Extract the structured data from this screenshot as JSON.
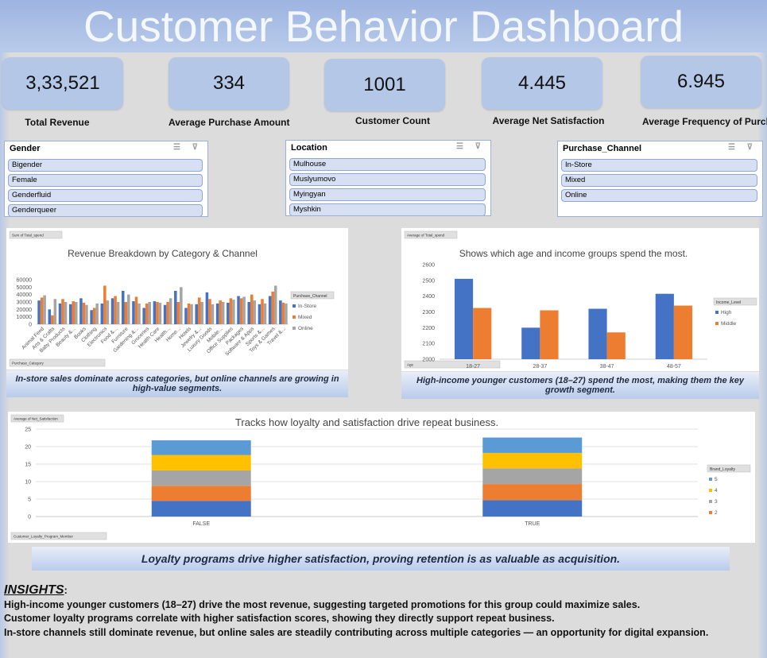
{
  "header": {
    "title": "Customer Behavior Dashboard"
  },
  "kpis": [
    {
      "value": "3,33,521",
      "label": "Total Revenue"
    },
    {
      "value": "334",
      "label": "Average Purchase Amount"
    },
    {
      "value": "1001",
      "label": "Customer Count"
    },
    {
      "value": "4.445",
      "label": "Average Net Satisfaction"
    },
    {
      "value": "6.945",
      "label": "Average Frequency of  Purchase"
    }
  ],
  "slicers": [
    {
      "title": "Gender",
      "items": [
        "Bigender",
        "Female",
        "Genderfluid",
        "Genderqueer"
      ]
    },
    {
      "title": "Location",
      "items": [
        "Mulhouse",
        "Muslyumovo",
        "Myingyan",
        "Myshkin"
      ]
    },
    {
      "title": "Purchase_Channel",
      "items": [
        "In-Store",
        "Mixed",
        "Online"
      ]
    }
  ],
  "chart_data": [
    {
      "type": "bar",
      "title": "Revenue Breakdown by Category & Channel",
      "field_buttons": [
        "Sum of Total_spend",
        "Purchase_Category"
      ],
      "legend_title": "Purchase_Channel",
      "categories": [
        "Animal Feed",
        "Arts & Crafts",
        "Baby Products",
        "Beauty &...",
        "Books",
        "Clothing",
        "Electronics",
        "Food &...",
        "Furniture",
        "Gardening &...",
        "Groceries",
        "Health Care",
        "Health...",
        "Home...",
        "Hotels",
        "Jewelry &...",
        "Luxury Goods",
        "Mobile...",
        "Office Supplies",
        "Packages",
        "Software & Apps",
        "Sports &...",
        "Toys & Games",
        "Travel &..."
      ],
      "series": [
        {
          "name": "In-Store",
          "color": "#4472c4",
          "values": [
            32000,
            20000,
            28000,
            27000,
            35000,
            19000,
            28000,
            35000,
            45000,
            31000,
            22000,
            31000,
            26000,
            45000,
            22000,
            27000,
            43000,
            28000,
            29000,
            38000,
            30000,
            27000,
            38000,
            32000
          ]
        },
        {
          "name": "Mixed",
          "color": "#ed7d31",
          "values": [
            36000,
            12000,
            34000,
            31000,
            29000,
            22000,
            52000,
            38000,
            30000,
            37000,
            28000,
            30000,
            30000,
            30000,
            28000,
            36000,
            34000,
            32000,
            35000,
            35000,
            40000,
            34000,
            44000,
            29000
          ]
        },
        {
          "name": "Online",
          "color": "#a5a5a5",
          "values": [
            39000,
            34000,
            30000,
            30000,
            26000,
            28000,
            32000,
            30000,
            40000,
            28000,
            30000,
            29000,
            35000,
            50000,
            27000,
            30000,
            27000,
            30000,
            33000,
            37000,
            32000,
            28000,
            52000,
            28000
          ]
        }
      ],
      "ylim": [
        0,
        60000
      ],
      "yticks": [
        0,
        10000,
        20000,
        30000,
        40000,
        50000,
        60000
      ],
      "grid": false,
      "legend": "right",
      "caption": "In-store sales dominate across categories, but online channels are growing in high-value segments."
    },
    {
      "type": "bar",
      "title": "Shows which age and income groups spend the most.",
      "field_buttons": [
        "Average of Total_spend",
        "Age"
      ],
      "legend_title": "Income_Level",
      "categories": [
        "18-27",
        "28-37",
        "38-47",
        "48-57"
      ],
      "series": [
        {
          "name": "High",
          "color": "#4472c4",
          "values": [
            2510,
            2200,
            2320,
            2415
          ]
        },
        {
          "name": "Middle",
          "color": "#ed7d31",
          "values": [
            2325,
            2310,
            2170,
            2340
          ]
        }
      ],
      "ylim": [
        2000,
        2600
      ],
      "yticks": [
        2000,
        2100,
        2200,
        2300,
        2400,
        2500,
        2600
      ],
      "grid": false,
      "legend": "right",
      "caption": "High-income younger customers (18–27) spend the most, making them the key growth segment."
    },
    {
      "type": "bar",
      "stacked": true,
      "title": "Tracks how loyalty and satisfaction drive repeat business.",
      "field_buttons": [
        "Average of Net_Satisfaction",
        "Customer_Loyalty_Program_Member"
      ],
      "legend_title": "Brand_Loyalty",
      "categories": [
        "FALSE",
        "TRUE"
      ],
      "series": [
        {
          "color": "#4472c4",
          "values": [
            4.5,
            4.7
          ]
        },
        {
          "name": "2",
          "color": "#ed7d31",
          "values": [
            4.3,
            4.6
          ]
        },
        {
          "name": "3",
          "color": "#a5a5a5",
          "values": [
            4.4,
            4.5
          ]
        },
        {
          "name": "4",
          "color": "#ffc000",
          "values": [
            4.4,
            4.4
          ]
        },
        {
          "name": "5",
          "color": "#5b9bd5",
          "values": [
            4.2,
            4.4
          ]
        }
      ],
      "ylim": [
        0,
        25
      ],
      "yticks": [
        0,
        5,
        10,
        15,
        20,
        25
      ],
      "grid": true,
      "legend": "right",
      "caption": "Loyalty programs drive higher satisfaction, proving retention is as valuable as acquisition."
    }
  ],
  "insights": {
    "heading": "INSIGHTS",
    "heading_punct": ":",
    "lines": [
      "High-income younger customers (18–27) drive the most revenue, suggesting targeted promotions for this group could maximize sales.",
      "Customer loyalty programs correlate with higher satisfaction scores, showing they directly support repeat business.",
      "In-store channels still dominate revenue, but online sales are steadily contributing across multiple categories — an opportunity for digital expansion."
    ]
  }
}
